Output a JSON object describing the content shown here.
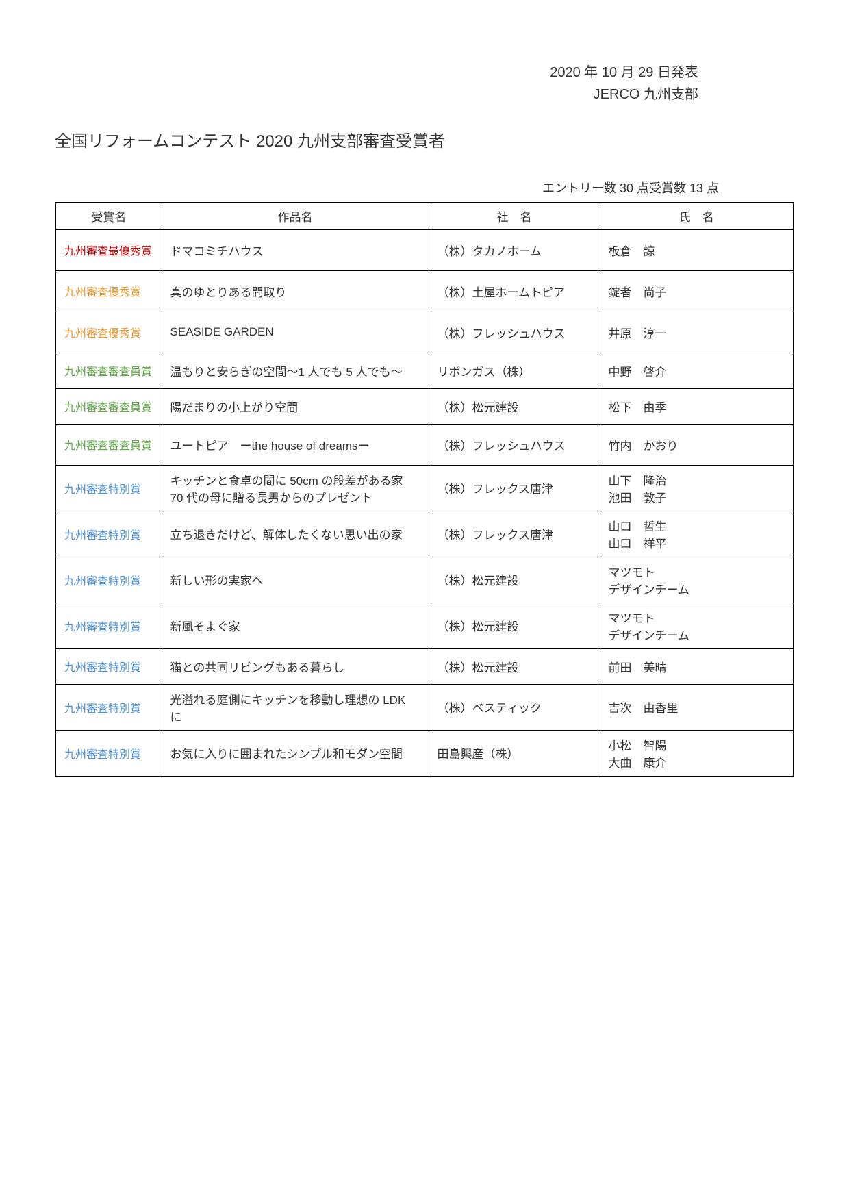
{
  "colors": {
    "grand_prize": "#cc0000",
    "excellence": "#e89830",
    "judge": "#5fa845",
    "special": "#4a90d9",
    "text": "#333333",
    "border": "#000000",
    "background": "#ffffff"
  },
  "header": {
    "date": "2020 年 10 月 29 日発表",
    "org": "JERCO 九州支部"
  },
  "title": "全国リフォームコンテスト 2020 九州支部審査受賞者",
  "entry_count": "エントリー数 30 点受賞数 13 点",
  "table": {
    "columns": [
      "受賞名",
      "作品名",
      "社　名",
      "氏　名"
    ],
    "rows": [
      {
        "award": "九州審査最優秀賞",
        "award_color": "#cc0000",
        "work": "ドマコミチハウス",
        "company": "（株）タカノホーム",
        "name": "板倉　諒",
        "height": "tall"
      },
      {
        "award": "九州審査優秀賞",
        "award_color": "#e89830",
        "work": "真のゆとりある間取り",
        "company": "（株）土屋ホームトピア",
        "name": "錠者　尚子",
        "height": "tall"
      },
      {
        "award": "九州審査優秀賞",
        "award_color": "#e89830",
        "work": "SEASIDE GARDEN",
        "company": "（株）フレッシュハウス",
        "name": "井原　淳一",
        "height": "tall"
      },
      {
        "award": "九州審査審査員賞",
        "award_color": "#5fa845",
        "work": "温もりと安らぎの空間～1 人でも 5 人でも～",
        "company": "リボンガス（株）",
        "name": "中野　啓介",
        "height": "med"
      },
      {
        "award": "九州審査審査員賞",
        "award_color": "#5fa845",
        "work": "陽だまりの小上がり空間",
        "company": "（株）松元建設",
        "name": "松下　由季",
        "height": "med"
      },
      {
        "award": "九州審査審査員賞",
        "award_color": "#5fa845",
        "work": "ユートピア　ーthe house of dreamsー",
        "company": "（株）フレッシュハウス",
        "name": "竹内　かおり",
        "height": "tall"
      },
      {
        "award": "九州審査特別賞",
        "award_color": "#4a90d9",
        "work": "キッチンと食卓の間に 50cm の段差がある家\n70 代の母に贈る長男からのプレゼント",
        "company": "（株）フレックス唐津",
        "name": "山下　隆治\n池田　敦子",
        "height": "med"
      },
      {
        "award": "九州審査特別賞",
        "award_color": "#4a90d9",
        "work": "立ち退きだけど、解体したくない思い出の家",
        "company": "（株）フレックス唐津",
        "name": "山口　哲生\n山口　祥平",
        "height": "med"
      },
      {
        "award": "九州審査特別賞",
        "award_color": "#4a90d9",
        "work": "新しい形の実家へ",
        "company": "（株）松元建設",
        "name": "マツモト\nデザインチーム",
        "height": "med"
      },
      {
        "award": "九州審査特別賞",
        "award_color": "#4a90d9",
        "work": "新風そよぐ家",
        "company": "（株）松元建設",
        "name": "マツモト\nデザインチーム",
        "height": "med"
      },
      {
        "award": "九州審査特別賞",
        "award_color": "#4a90d9",
        "work": "猫との共同リビングもある暮らし",
        "company": "（株）松元建設",
        "name": "前田　美晴",
        "height": "med"
      },
      {
        "award": "九州審査特別賞",
        "award_color": "#4a90d9",
        "work": "光溢れる庭側にキッチンを移動し理想の LDK に",
        "company": "（株）ベスティック",
        "name": "吉次　由香里",
        "height": "med"
      },
      {
        "award": "九州審査特別賞",
        "award_color": "#4a90d9",
        "work": "お気に入りに囲まれたシンプル和モダン空間",
        "company": "田島興産（株）",
        "name": "小松　智陽\n大曲　康介",
        "height": "tall"
      }
    ]
  }
}
